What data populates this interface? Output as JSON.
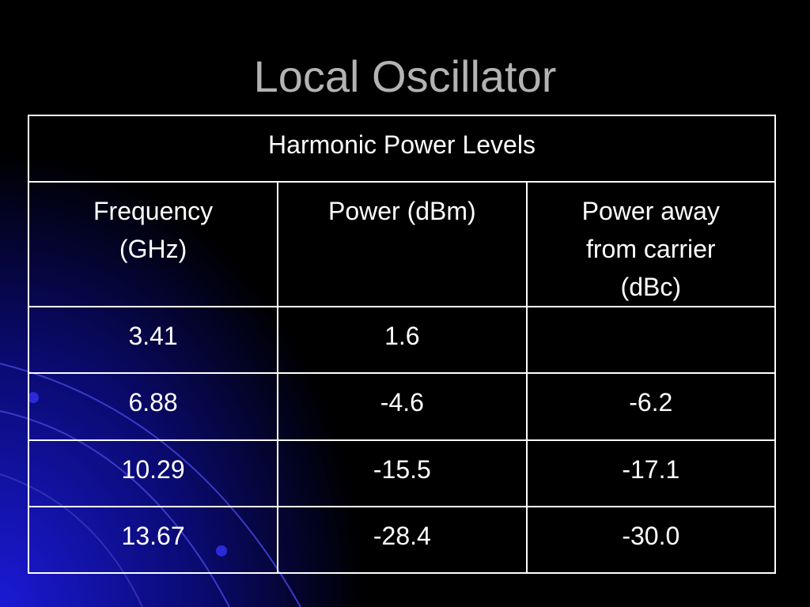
{
  "title": "Local Oscillator",
  "table": {
    "caption": "Harmonic Power Levels",
    "header": [
      "Frequency (GHz)",
      "Power (dBm)",
      "Power away from carrier (dBc)"
    ],
    "rows": [
      [
        "3.41",
        "1.6"
      ],
      [
        "6.88",
        "-4.6",
        "-6.2"
      ],
      [
        "10.29",
        "-15.5",
        "-17.1"
      ],
      [
        "13.67",
        "-28.4",
        "-30.0"
      ]
    ]
  }
}
